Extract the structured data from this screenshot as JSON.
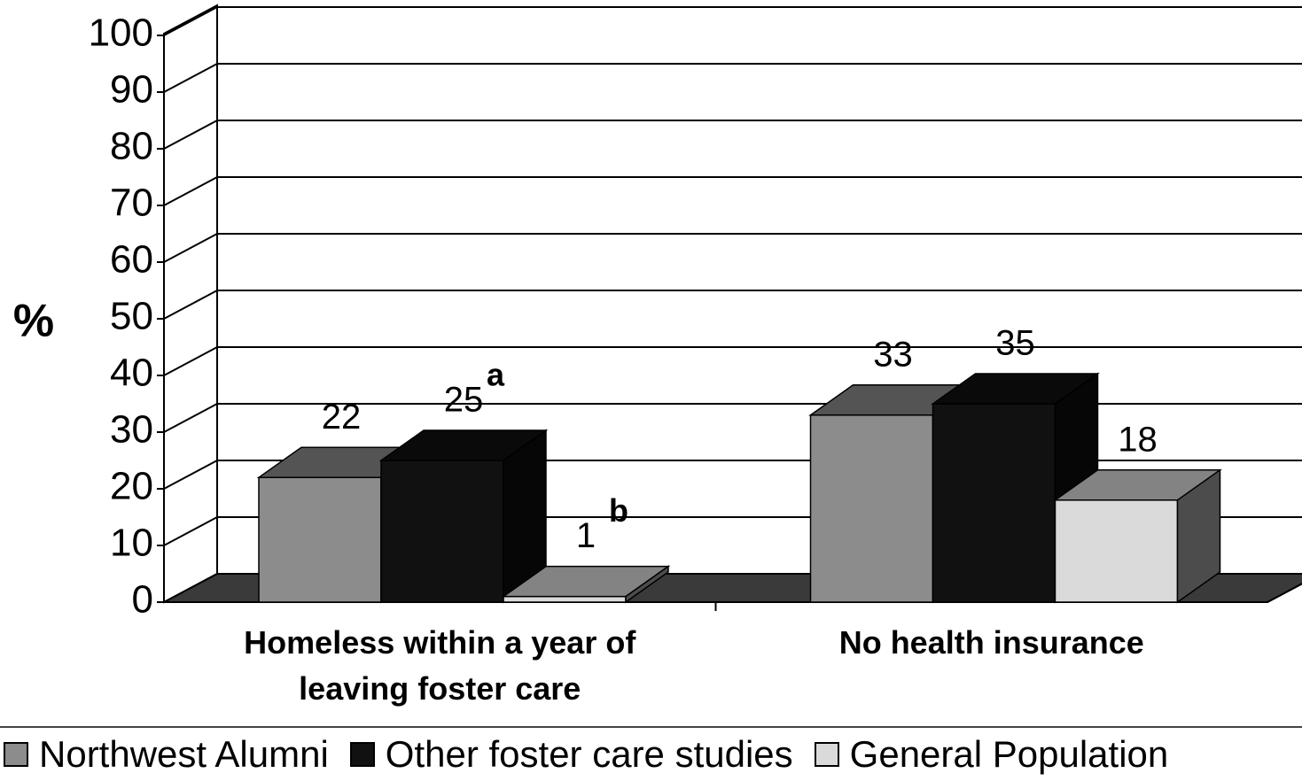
{
  "chart_data": {
    "type": "bar3d",
    "y_label": "%",
    "categories": [
      "Homeless within a year of leaving foster care",
      "No health insurance"
    ],
    "series": [
      {
        "name": "Northwest Alumni",
        "color": "#8c8c8c",
        "values": [
          22,
          33
        ]
      },
      {
        "name": "Other foster care studies",
        "color": "#111111",
        "values": [
          25,
          35
        ]
      },
      {
        "name": "General Population",
        "color": "#dadada",
        "values": [
          1,
          18
        ]
      }
    ],
    "annotations": [
      {
        "text": "a",
        "series": "Other foster care studies",
        "category": "Homeless within a year of leaving foster care"
      },
      {
        "text": "b",
        "series": "General Population",
        "category": "Homeless within a year of leaving foster care"
      }
    ],
    "ylim": [
      0,
      100
    ],
    "yticks": [
      0,
      10,
      20,
      30,
      40,
      50,
      60,
      70,
      80,
      90,
      100
    ],
    "grid": true,
    "legend": "bottom"
  }
}
